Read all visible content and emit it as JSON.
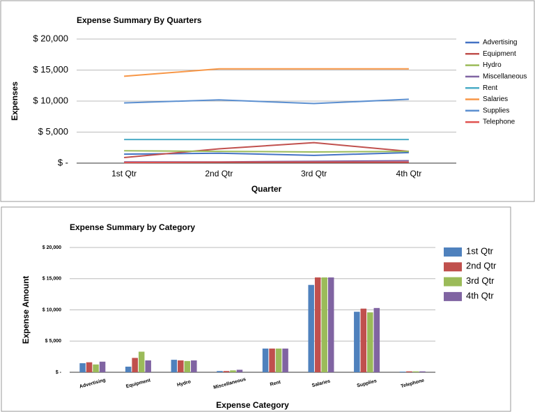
{
  "chart_data": [
    {
      "type": "line",
      "title": "Expense Summary By Quarters",
      "x_label": "Quarter",
      "y_label": "Expenses",
      "categories": [
        "1st Qtr",
        "2nd Qtr",
        "3rd Qtr",
        "4th Qtr"
      ],
      "series": [
        {
          "name": "Advertising",
          "color": "#4472c4",
          "values": [
            1450,
            1600,
            1250,
            1700
          ]
        },
        {
          "name": "Equipment",
          "color": "#c0504d",
          "values": [
            900,
            2300,
            3300,
            1900
          ]
        },
        {
          "name": "Hydro",
          "color": "#9bbb59",
          "values": [
            2000,
            1900,
            1800,
            1900
          ]
        },
        {
          "name": "Miscellaneous",
          "color": "#8064a2",
          "values": [
            200,
            200,
            300,
            400
          ]
        },
        {
          "name": "Rent",
          "color": "#4bacc6",
          "values": [
            3800,
            3800,
            3800,
            3800
          ]
        },
        {
          "name": "Salaries",
          "color": "#f79646",
          "values": [
            14000,
            15200,
            15200,
            15200
          ]
        },
        {
          "name": "Supplies",
          "color": "#5b8fd0",
          "values": [
            9700,
            10200,
            9600,
            10300
          ]
        },
        {
          "name": "Telephone",
          "color": "#e0524f",
          "values": [
            100,
            150,
            150,
            150
          ]
        }
      ],
      "ylim": [
        0,
        20000
      ],
      "yticks": [
        {
          "value": 0,
          "label": "$ -"
        },
        {
          "value": 5000,
          "label": "$ 5,000"
        },
        {
          "value": 10000,
          "label": "$ 10,000"
        },
        {
          "value": 15000,
          "label": "$ 15,000"
        },
        {
          "value": 20000,
          "label": "$ 20,000"
        }
      ],
      "grid": true,
      "legend": "right"
    },
    {
      "type": "bar",
      "title": "Expense Summary by Category",
      "x_label": "Expense Category",
      "y_label": "Expense Amount",
      "categories": [
        "Advertising",
        "Equipment",
        "Hydro",
        "Miscellaneous",
        "Rent",
        "Salaries",
        "Supplies",
        "Telephone"
      ],
      "series": [
        {
          "name": "1st Qtr",
          "color": "#4f81bd",
          "values": [
            1450,
            900,
            2000,
            200,
            3800,
            14000,
            9700,
            100
          ]
        },
        {
          "name": "2nd Qtr",
          "color": "#c0504d",
          "values": [
            1600,
            2300,
            1900,
            200,
            3800,
            15200,
            10200,
            150
          ]
        },
        {
          "name": "3rd Qtr",
          "color": "#9bbb59",
          "values": [
            1250,
            3300,
            1800,
            300,
            3800,
            15200,
            9600,
            150
          ]
        },
        {
          "name": "4th Qtr",
          "color": "#8064a2",
          "values": [
            1700,
            1900,
            1900,
            400,
            3800,
            15200,
            10300,
            150
          ]
        }
      ],
      "ylim": [
        0,
        20000
      ],
      "yticks": [
        {
          "value": 0,
          "label": "$ -"
        },
        {
          "value": 5000,
          "label": "$ 5,000"
        },
        {
          "value": 10000,
          "label": "$ 10,000"
        },
        {
          "value": 15000,
          "label": "$ 15,000"
        },
        {
          "value": 20000,
          "label": "$ 20,000"
        }
      ],
      "grid": true,
      "legend": "right"
    }
  ]
}
